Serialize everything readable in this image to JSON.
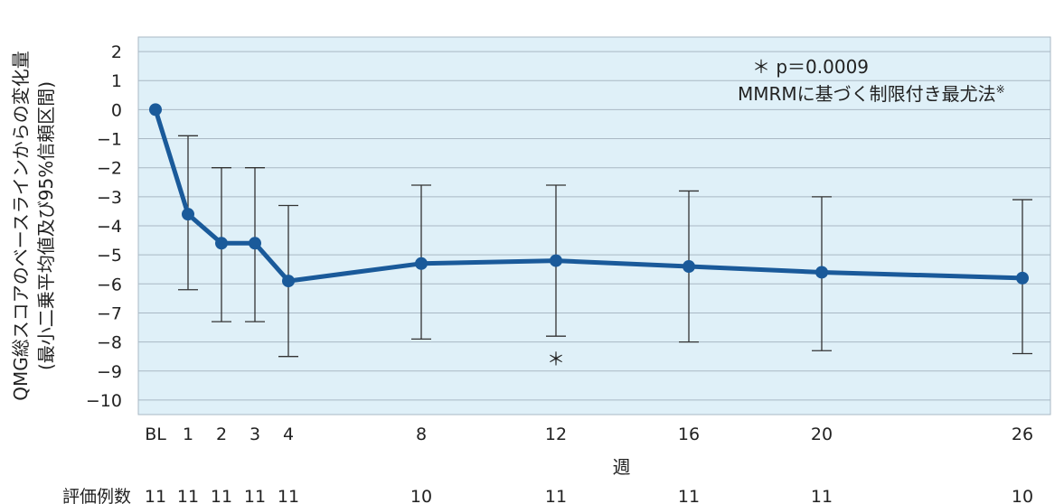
{
  "chart_data": {
    "type": "line",
    "title": "",
    "xlabel": "週",
    "ylabel_line1": "QMG総スコアのベースラインからの変化量",
    "ylabel_line2": "(最小二乗平均値及び95%信頼区間)",
    "ylim": [
      -10.5,
      2.5
    ],
    "yticks": [
      2,
      1,
      0,
      -1,
      -2,
      -3,
      -4,
      -5,
      -6,
      -7,
      -8,
      -9,
      -10
    ],
    "ytick_labels": [
      "2",
      "1",
      "0",
      "−1",
      "−2",
      "−3",
      "−4",
      "−5",
      "−6",
      "−7",
      "−8",
      "−9",
      "−10"
    ],
    "grid": true,
    "x": [
      "BL",
      "1",
      "2",
      "3",
      "4",
      "8",
      "12",
      "16",
      "20",
      "26"
    ],
    "series": [
      {
        "values": [
          0,
          -3.6,
          -4.6,
          -4.6,
          -5.9,
          -5.3,
          -5.2,
          -5.4,
          -5.6,
          -5.8
        ],
        "ci_upper": [
          null,
          -0.9,
          -2.0,
          -2.0,
          -3.3,
          -2.6,
          -2.6,
          -2.8,
          -3.0,
          -3.1
        ],
        "ci_lower": [
          null,
          -6.2,
          -7.3,
          -7.3,
          -8.5,
          -7.9,
          -7.8,
          -8.0,
          -8.3,
          -8.4
        ]
      }
    ],
    "significance_marker": {
      "x": "12",
      "y": -8.5,
      "text": "＊"
    },
    "annotation_line1": "＊ p＝0.0009",
    "annotation_line2": "MMRMに基づく制限付き最尤法",
    "annotation_sup": "※",
    "counts_label": "評価例数",
    "counts": [
      "11",
      "11",
      "11",
      "11",
      "11",
      "10",
      "11",
      "11",
      "11",
      "10"
    ],
    "colors": {
      "line": "#1a5a9a",
      "background": "#dff0f8",
      "grid": "#a9b8c4",
      "error_bar": "#333333"
    }
  }
}
